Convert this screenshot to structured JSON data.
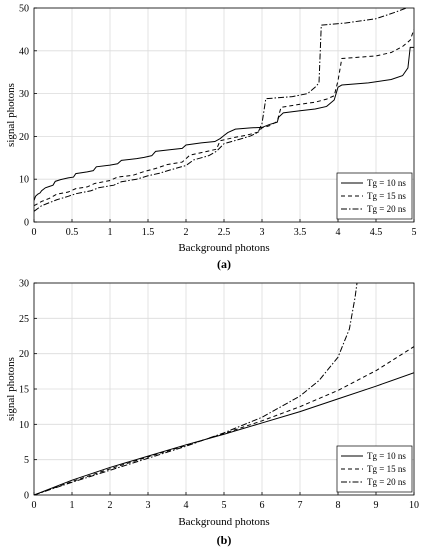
{
  "chart_data": [
    {
      "type": "line",
      "caption": "(a)",
      "xlabel": "Background photons",
      "ylabel": "signal photons",
      "xlim": [
        0,
        5
      ],
      "ylim": [
        0,
        50
      ],
      "xticks": [
        "0",
        "0.5",
        "1",
        "1.5",
        "2",
        "2.5",
        "3",
        "3.5",
        "4",
        "4.5",
        "5"
      ],
      "yticks": [
        "0",
        "10",
        "20",
        "30",
        "40",
        "50"
      ],
      "grid": true,
      "legend_position": "bottom-right",
      "series": [
        {
          "name": "Tg = 10 ns",
          "style": "solid",
          "points": [
            [
              0,
              5
            ],
            [
              0.02,
              6
            ],
            [
              0.05,
              6.5
            ],
            [
              0.08,
              6.8
            ],
            [
              0.1,
              7.3
            ],
            [
              0.15,
              8
            ],
            [
              0.2,
              8.3
            ],
            [
              0.25,
              8.6
            ],
            [
              0.28,
              9.5
            ],
            [
              0.35,
              9.9
            ],
            [
              0.45,
              10.3
            ],
            [
              0.52,
              10.5
            ],
            [
              0.55,
              11.3
            ],
            [
              0.7,
              11.7
            ],
            [
              0.78,
              12
            ],
            [
              0.82,
              12.9
            ],
            [
              1.0,
              13.3
            ],
            [
              1.1,
              13.6
            ],
            [
              1.15,
              14.4
            ],
            [
              1.35,
              14.8
            ],
            [
              1.45,
              15.1
            ],
            [
              1.55,
              15.5
            ],
            [
              1.6,
              16.5
            ],
            [
              1.8,
              16.9
            ],
            [
              1.95,
              17.2
            ],
            [
              2.0,
              18
            ],
            [
              2.2,
              18.5
            ],
            [
              2.38,
              18.8
            ],
            [
              2.45,
              19.5
            ],
            [
              2.5,
              20.2
            ],
            [
              2.55,
              20.9
            ],
            [
              2.65,
              21.7
            ],
            [
              2.85,
              22
            ],
            [
              3.0,
              22.1
            ],
            [
              3.1,
              22.8
            ],
            [
              3.2,
              23.3
            ],
            [
              3.22,
              24.5
            ],
            [
              3.28,
              25.5
            ],
            [
              3.5,
              26
            ],
            [
              3.7,
              26.4
            ],
            [
              3.85,
              27
            ],
            [
              3.95,
              28.5
            ],
            [
              4.0,
              31.5
            ],
            [
              4.05,
              32
            ],
            [
              4.4,
              32.5
            ],
            [
              4.7,
              33.3
            ],
            [
              4.85,
              34.2
            ],
            [
              4.92,
              36
            ],
            [
              4.95,
              40.8
            ],
            [
              5.0,
              40.8
            ]
          ]
        },
        {
          "name": "Tg = 15 ns",
          "style": "dashed",
          "points": [
            [
              0,
              3.8
            ],
            [
              0.1,
              4.8
            ],
            [
              0.2,
              5.5
            ],
            [
              0.3,
              6.5
            ],
            [
              0.45,
              7
            ],
            [
              0.55,
              7.8
            ],
            [
              0.7,
              8.2
            ],
            [
              0.8,
              9
            ],
            [
              1.0,
              9.7
            ],
            [
              1.1,
              10.5
            ],
            [
              1.3,
              10.9
            ],
            [
              1.45,
              11.8
            ],
            [
              1.6,
              12.5
            ],
            [
              1.75,
              13.4
            ],
            [
              1.95,
              14
            ],
            [
              2.05,
              15.6
            ],
            [
              2.25,
              16.4
            ],
            [
              2.4,
              17
            ],
            [
              2.45,
              19
            ],
            [
              2.65,
              19.8
            ],
            [
              2.8,
              20.3
            ],
            [
              2.95,
              21
            ],
            [
              3.0,
              22
            ],
            [
              3.1,
              22.5
            ],
            [
              3.2,
              23.5
            ],
            [
              3.25,
              26.8
            ],
            [
              3.5,
              27.5
            ],
            [
              3.7,
              28
            ],
            [
              3.85,
              28.7
            ],
            [
              3.95,
              29.5
            ],
            [
              4.0,
              33
            ],
            [
              4.05,
              38.2
            ],
            [
              4.5,
              38.8
            ],
            [
              4.7,
              39.6
            ],
            [
              4.85,
              41
            ],
            [
              4.95,
              42.5
            ],
            [
              5.0,
              45
            ]
          ]
        },
        {
          "name": "Tg = 20 ns",
          "style": "dashdot",
          "points": [
            [
              0,
              2.5
            ],
            [
              0.1,
              3.8
            ],
            [
              0.2,
              4.5
            ],
            [
              0.3,
              5.2
            ],
            [
              0.45,
              6
            ],
            [
              0.55,
              6.6
            ],
            [
              0.75,
              7.3
            ],
            [
              0.85,
              8
            ],
            [
              1.05,
              8.6
            ],
            [
              1.15,
              9.4
            ],
            [
              1.35,
              10
            ],
            [
              1.5,
              10.8
            ],
            [
              1.65,
              11.4
            ],
            [
              1.8,
              12.2
            ],
            [
              2.0,
              13.2
            ],
            [
              2.1,
              14.5
            ],
            [
              2.3,
              15.5
            ],
            [
              2.4,
              16.5
            ],
            [
              2.5,
              18.3
            ],
            [
              2.7,
              19.3
            ],
            [
              2.85,
              20.1
            ],
            [
              2.95,
              21
            ],
            [
              3.0,
              23
            ],
            [
              3.05,
              28.8
            ],
            [
              3.4,
              29.3
            ],
            [
              3.6,
              30
            ],
            [
              3.7,
              31.5
            ],
            [
              3.75,
              32.5
            ],
            [
              3.78,
              46
            ],
            [
              4.1,
              46.5
            ],
            [
              4.5,
              47.5
            ],
            [
              4.75,
              49
            ],
            [
              4.9,
              50
            ]
          ]
        }
      ]
    },
    {
      "type": "line",
      "caption": "(b)",
      "xlabel": "Background photons",
      "ylabel": "signal photons",
      "xlim": [
        0,
        10
      ],
      "ylim": [
        0,
        30
      ],
      "xticks": [
        "0",
        "1",
        "2",
        "3",
        "4",
        "5",
        "6",
        "7",
        "8",
        "9",
        "10"
      ],
      "yticks": [
        "0",
        "5",
        "10",
        "15",
        "20",
        "25",
        "30"
      ],
      "grid": true,
      "legend_position": "bottom-right",
      "series": [
        {
          "name": "Tg = 10 ns",
          "style": "solid",
          "points": [
            [
              0,
              0
            ],
            [
              1,
              2.1
            ],
            [
              2,
              3.9
            ],
            [
              3,
              5.5
            ],
            [
              4,
              7.1
            ],
            [
              5,
              8.6
            ],
            [
              6,
              10.2
            ],
            [
              7,
              11.8
            ],
            [
              8,
              13.6
            ],
            [
              9,
              15.4
            ],
            [
              10,
              17.3
            ]
          ]
        },
        {
          "name": "Tg = 15 ns",
          "style": "dashed",
          "points": [
            [
              0,
              0
            ],
            [
              1,
              1.9
            ],
            [
              2,
              3.7
            ],
            [
              3,
              5.4
            ],
            [
              4,
              7.0
            ],
            [
              5,
              8.7
            ],
            [
              6,
              10.5
            ],
            [
              7,
              12.5
            ],
            [
              8,
              14.8
            ],
            [
              9,
              17.6
            ],
            [
              10,
              21.0
            ]
          ]
        },
        {
          "name": "Tg = 20 ns",
          "style": "dashdot",
          "points": [
            [
              0,
              0
            ],
            [
              1,
              1.8
            ],
            [
              2,
              3.5
            ],
            [
              3,
              5.2
            ],
            [
              4,
              6.9
            ],
            [
              5,
              8.8
            ],
            [
              6,
              11.0
            ],
            [
              7,
              14.0
            ],
            [
              7.5,
              16.2
            ],
            [
              8,
              19.5
            ],
            [
              8.3,
              23.5
            ],
            [
              8.45,
              28
            ],
            [
              8.5,
              30
            ]
          ]
        }
      ]
    }
  ]
}
